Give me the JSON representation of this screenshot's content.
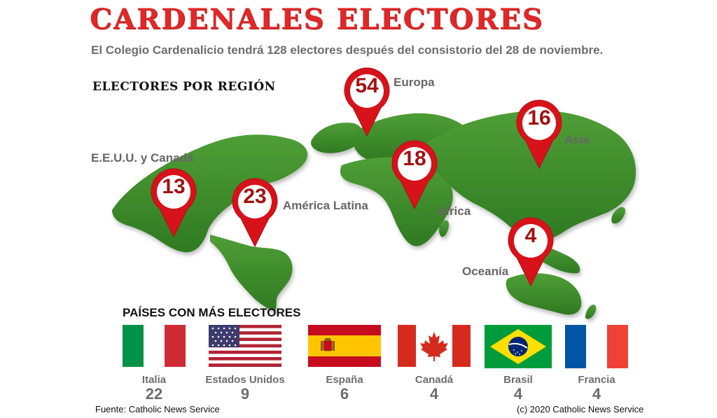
{
  "header": {
    "title": "CARDENALES ELECTORES",
    "subtitle": "El Colegio Cardenalicio tendrá 128 electores después del consistorio del 28 de noviembre.",
    "region_heading": "ELECTORES POR REGIÓN"
  },
  "colors": {
    "title": "#e02828",
    "land": "#3f8f2c",
    "pin": "#d7121b",
    "pin_number": "#a01212",
    "label": "#666666"
  },
  "regions": [
    {
      "name": "Europa",
      "electors": "54"
    },
    {
      "name": "Asia",
      "electors": "16"
    },
    {
      "name": "E.E.U.U. y Canadá",
      "electors": "13"
    },
    {
      "name": "América Latina",
      "electors": "23"
    },
    {
      "name": "África",
      "electors": "18"
    },
    {
      "name": "Oceanía",
      "electors": "4"
    }
  ],
  "countries_heading": "PAÍSES CON MÁS ELECTORES",
  "countries": [
    {
      "name": "Italia",
      "electors": "22",
      "flag": "italy-flag"
    },
    {
      "name": "Estados Unidos",
      "electors": "9",
      "flag": "usa-flag"
    },
    {
      "name": "España",
      "electors": "6",
      "flag": "spain-flag"
    },
    {
      "name": "Canadá",
      "electors": "4",
      "flag": "canada-flag"
    },
    {
      "name": "Brasil",
      "electors": "4",
      "flag": "brazil-flag"
    },
    {
      "name": "Francia",
      "electors": "4",
      "flag": "france-flag"
    }
  ],
  "footer": {
    "source": "Fuente: Catholic News Service",
    "copyright": "(c) 2020 Catholic News Service"
  }
}
